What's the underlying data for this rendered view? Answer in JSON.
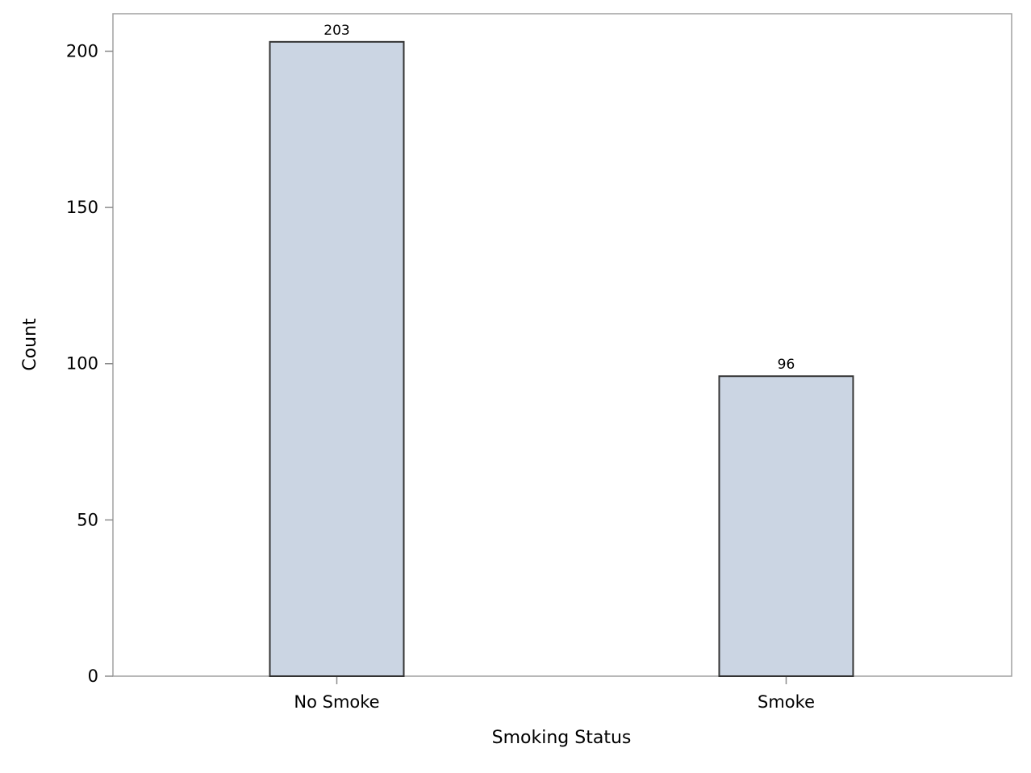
{
  "chart_data": {
    "type": "bar",
    "title": "",
    "xlabel": "Smoking Status",
    "ylabel": "Count",
    "categories": [
      "No Smoke",
      "Smoke"
    ],
    "values": [
      203,
      96
    ],
    "data_labels": [
      "203",
      "96"
    ],
    "ylim": [
      0,
      212
    ],
    "yticks": [
      0,
      50,
      100,
      150,
      200
    ],
    "grid": false,
    "legend": "none",
    "colors": {
      "bar_fill": "#cbd5e3",
      "bar_stroke": "#333333",
      "frame": "#a0a0a0",
      "axis": "#8c8c8c"
    }
  }
}
